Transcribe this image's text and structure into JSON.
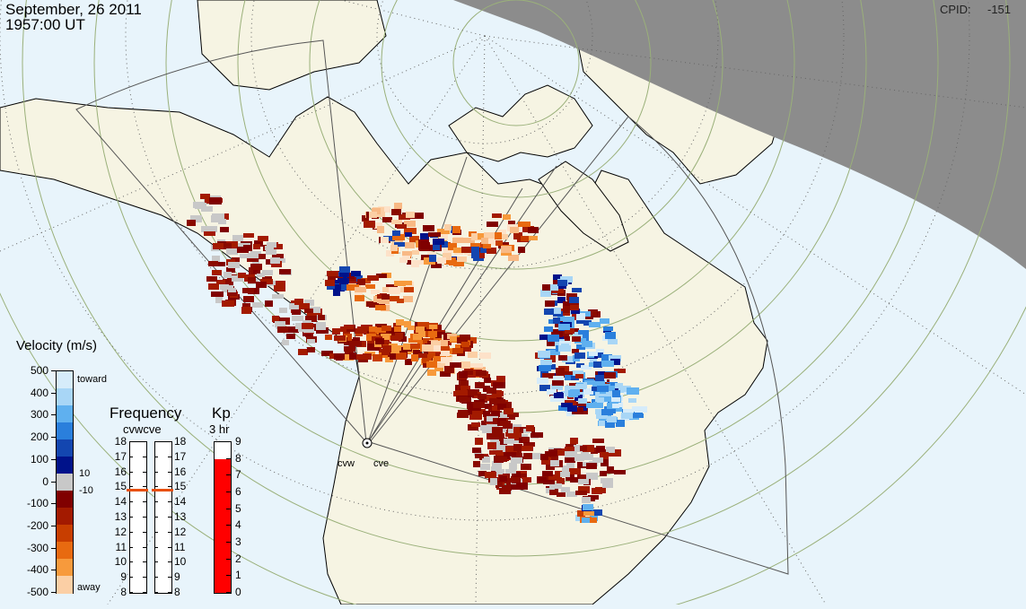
{
  "header": {
    "date": "September, 26 2011",
    "time": "1957:00 UT",
    "cpid_label": "CPID:",
    "cpid_value": "-151"
  },
  "colors": {
    "ocean": "#e8f4fb",
    "land": "#f6f4e3",
    "night": "#8c8c8c",
    "grid": "#9ab07a",
    "grey_scatter": "#c8c8c8"
  },
  "velocity_legend": {
    "title": "Velocity (m/s)",
    "ticks": [
      "500",
      "400",
      "300",
      "200",
      "100",
      "0",
      "-100",
      "-200",
      "-300",
      "-400",
      "-500"
    ],
    "toward_label": "toward",
    "away_label": "away",
    "ground_scatter_labels": [
      "10",
      "-10"
    ],
    "colors": [
      "#d6ecfa",
      "#a8d6f6",
      "#5fb0ef",
      "#2a7fdc",
      "#1346b0",
      "#00128a",
      "#c8c8c8",
      "#800000",
      "#a31a00",
      "#c83e00",
      "#e86a10",
      "#f79a3c",
      "#fbcfa5"
    ]
  },
  "frequency_legend": {
    "title": "Frequency",
    "subtitle": "cvwcve",
    "ticks_left": [
      "18",
      "17",
      "16",
      "15",
      "14",
      "13",
      "12",
      "11",
      "10",
      "9",
      "8"
    ],
    "ticks_right": [
      "18",
      "17",
      "16",
      "15",
      "14",
      "13",
      "12",
      "11",
      "10",
      "9",
      "8"
    ],
    "cvw_mhz": 14.8,
    "cve_mhz": 14.8
  },
  "kp_legend": {
    "title": "Kp",
    "subtitle": "3 hr",
    "ticks": [
      "9",
      "8",
      "7",
      "6",
      "5",
      "4",
      "3",
      "2",
      "1",
      "0"
    ],
    "value": 8,
    "color": "#ff0000"
  },
  "radars": {
    "west_label": "cvw",
    "east_label": "cve"
  }
}
